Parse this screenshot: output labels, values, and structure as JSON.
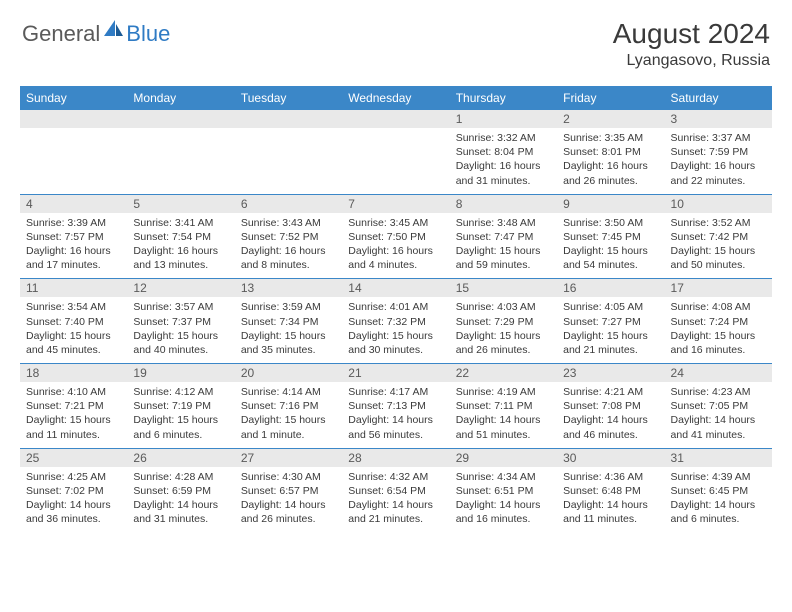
{
  "logo": {
    "general": "General",
    "blue": "Blue"
  },
  "header": {
    "month_title": "August 2024",
    "location": "Lyangasovo, Russia"
  },
  "colors": {
    "header_bar": "#3b87c8",
    "header_text": "#ffffff",
    "daynum_bg": "#e9e9e9",
    "daynum_text": "#5a5a5a",
    "body_text": "#3a3a3a",
    "logo_gray": "#5a5a5a",
    "logo_blue": "#2f7bc4",
    "row_border": "#3b87c8",
    "page_bg": "#ffffff"
  },
  "weekdays": [
    "Sunday",
    "Monday",
    "Tuesday",
    "Wednesday",
    "Thursday",
    "Friday",
    "Saturday"
  ],
  "weeks": [
    [
      {
        "day": "",
        "lines": []
      },
      {
        "day": "",
        "lines": []
      },
      {
        "day": "",
        "lines": []
      },
      {
        "day": "",
        "lines": []
      },
      {
        "day": "1",
        "lines": [
          "Sunrise: 3:32 AM",
          "Sunset: 8:04 PM",
          "Daylight: 16 hours and 31 minutes."
        ]
      },
      {
        "day": "2",
        "lines": [
          "Sunrise: 3:35 AM",
          "Sunset: 8:01 PM",
          "Daylight: 16 hours and 26 minutes."
        ]
      },
      {
        "day": "3",
        "lines": [
          "Sunrise: 3:37 AM",
          "Sunset: 7:59 PM",
          "Daylight: 16 hours and 22 minutes."
        ]
      }
    ],
    [
      {
        "day": "4",
        "lines": [
          "Sunrise: 3:39 AM",
          "Sunset: 7:57 PM",
          "Daylight: 16 hours and 17 minutes."
        ]
      },
      {
        "day": "5",
        "lines": [
          "Sunrise: 3:41 AM",
          "Sunset: 7:54 PM",
          "Daylight: 16 hours and 13 minutes."
        ]
      },
      {
        "day": "6",
        "lines": [
          "Sunrise: 3:43 AM",
          "Sunset: 7:52 PM",
          "Daylight: 16 hours and 8 minutes."
        ]
      },
      {
        "day": "7",
        "lines": [
          "Sunrise: 3:45 AM",
          "Sunset: 7:50 PM",
          "Daylight: 16 hours and 4 minutes."
        ]
      },
      {
        "day": "8",
        "lines": [
          "Sunrise: 3:48 AM",
          "Sunset: 7:47 PM",
          "Daylight: 15 hours and 59 minutes."
        ]
      },
      {
        "day": "9",
        "lines": [
          "Sunrise: 3:50 AM",
          "Sunset: 7:45 PM",
          "Daylight: 15 hours and 54 minutes."
        ]
      },
      {
        "day": "10",
        "lines": [
          "Sunrise: 3:52 AM",
          "Sunset: 7:42 PM",
          "Daylight: 15 hours and 50 minutes."
        ]
      }
    ],
    [
      {
        "day": "11",
        "lines": [
          "Sunrise: 3:54 AM",
          "Sunset: 7:40 PM",
          "Daylight: 15 hours and 45 minutes."
        ]
      },
      {
        "day": "12",
        "lines": [
          "Sunrise: 3:57 AM",
          "Sunset: 7:37 PM",
          "Daylight: 15 hours and 40 minutes."
        ]
      },
      {
        "day": "13",
        "lines": [
          "Sunrise: 3:59 AM",
          "Sunset: 7:34 PM",
          "Daylight: 15 hours and 35 minutes."
        ]
      },
      {
        "day": "14",
        "lines": [
          "Sunrise: 4:01 AM",
          "Sunset: 7:32 PM",
          "Daylight: 15 hours and 30 minutes."
        ]
      },
      {
        "day": "15",
        "lines": [
          "Sunrise: 4:03 AM",
          "Sunset: 7:29 PM",
          "Daylight: 15 hours and 26 minutes."
        ]
      },
      {
        "day": "16",
        "lines": [
          "Sunrise: 4:05 AM",
          "Sunset: 7:27 PM",
          "Daylight: 15 hours and 21 minutes."
        ]
      },
      {
        "day": "17",
        "lines": [
          "Sunrise: 4:08 AM",
          "Sunset: 7:24 PM",
          "Daylight: 15 hours and 16 minutes."
        ]
      }
    ],
    [
      {
        "day": "18",
        "lines": [
          "Sunrise: 4:10 AM",
          "Sunset: 7:21 PM",
          "Daylight: 15 hours and 11 minutes."
        ]
      },
      {
        "day": "19",
        "lines": [
          "Sunrise: 4:12 AM",
          "Sunset: 7:19 PM",
          "Daylight: 15 hours and 6 minutes."
        ]
      },
      {
        "day": "20",
        "lines": [
          "Sunrise: 4:14 AM",
          "Sunset: 7:16 PM",
          "Daylight: 15 hours and 1 minute."
        ]
      },
      {
        "day": "21",
        "lines": [
          "Sunrise: 4:17 AM",
          "Sunset: 7:13 PM",
          "Daylight: 14 hours and 56 minutes."
        ]
      },
      {
        "day": "22",
        "lines": [
          "Sunrise: 4:19 AM",
          "Sunset: 7:11 PM",
          "Daylight: 14 hours and 51 minutes."
        ]
      },
      {
        "day": "23",
        "lines": [
          "Sunrise: 4:21 AM",
          "Sunset: 7:08 PM",
          "Daylight: 14 hours and 46 minutes."
        ]
      },
      {
        "day": "24",
        "lines": [
          "Sunrise: 4:23 AM",
          "Sunset: 7:05 PM",
          "Daylight: 14 hours and 41 minutes."
        ]
      }
    ],
    [
      {
        "day": "25",
        "lines": [
          "Sunrise: 4:25 AM",
          "Sunset: 7:02 PM",
          "Daylight: 14 hours and 36 minutes."
        ]
      },
      {
        "day": "26",
        "lines": [
          "Sunrise: 4:28 AM",
          "Sunset: 6:59 PM",
          "Daylight: 14 hours and 31 minutes."
        ]
      },
      {
        "day": "27",
        "lines": [
          "Sunrise: 4:30 AM",
          "Sunset: 6:57 PM",
          "Daylight: 14 hours and 26 minutes."
        ]
      },
      {
        "day": "28",
        "lines": [
          "Sunrise: 4:32 AM",
          "Sunset: 6:54 PM",
          "Daylight: 14 hours and 21 minutes."
        ]
      },
      {
        "day": "29",
        "lines": [
          "Sunrise: 4:34 AM",
          "Sunset: 6:51 PM",
          "Daylight: 14 hours and 16 minutes."
        ]
      },
      {
        "day": "30",
        "lines": [
          "Sunrise: 4:36 AM",
          "Sunset: 6:48 PM",
          "Daylight: 14 hours and 11 minutes."
        ]
      },
      {
        "day": "31",
        "lines": [
          "Sunrise: 4:39 AM",
          "Sunset: 6:45 PM",
          "Daylight: 14 hours and 6 minutes."
        ]
      }
    ]
  ]
}
